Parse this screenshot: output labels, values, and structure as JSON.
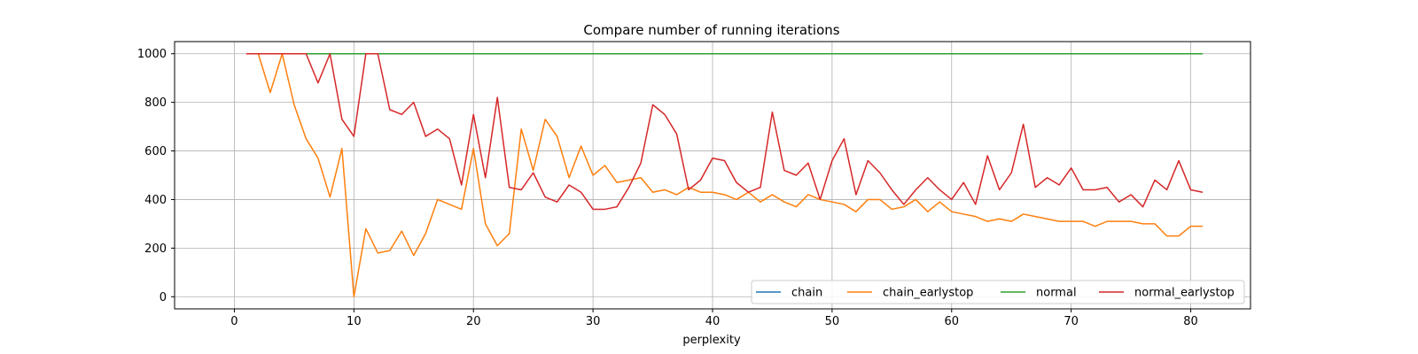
{
  "chart_data": {
    "type": "line",
    "title": "Compare number of running iterations",
    "xlabel": "perplexity",
    "ylabel": "",
    "xlim": [
      -5,
      85
    ],
    "ylim": [
      -50,
      1050
    ],
    "xticks": [
      0,
      10,
      20,
      30,
      40,
      50,
      60,
      70,
      80
    ],
    "yticks": [
      0,
      200,
      400,
      600,
      800,
      1000
    ],
    "grid": true,
    "legend_position": "lower-right",
    "x": [
      1,
      2,
      3,
      4,
      5,
      6,
      7,
      8,
      9,
      10,
      11,
      12,
      13,
      14,
      15,
      16,
      17,
      18,
      19,
      20,
      21,
      22,
      23,
      24,
      25,
      26,
      27,
      28,
      29,
      30,
      31,
      32,
      33,
      34,
      35,
      36,
      37,
      38,
      39,
      40,
      41,
      42,
      43,
      44,
      45,
      46,
      47,
      48,
      49,
      50,
      51,
      52,
      53,
      54,
      55,
      56,
      57,
      58,
      59,
      60,
      61,
      62,
      63,
      64,
      65,
      66,
      67,
      68,
      69,
      70,
      71,
      72,
      73,
      74,
      75,
      76,
      77,
      78,
      79,
      80,
      81
    ],
    "series": [
      {
        "name": "chain",
        "color": "#1f77b4",
        "values": [
          1000,
          1000,
          1000,
          1000,
          1000,
          1000,
          1000,
          1000,
          1000,
          1000,
          1000,
          1000,
          1000,
          1000,
          1000,
          1000,
          1000,
          1000,
          1000,
          1000,
          1000,
          1000,
          1000,
          1000,
          1000,
          1000,
          1000,
          1000,
          1000,
          1000,
          1000,
          1000,
          1000,
          1000,
          1000,
          1000,
          1000,
          1000,
          1000,
          1000,
          1000,
          1000,
          1000,
          1000,
          1000,
          1000,
          1000,
          1000,
          1000,
          1000,
          1000,
          1000,
          1000,
          1000,
          1000,
          1000,
          1000,
          1000,
          1000,
          1000,
          1000,
          1000,
          1000,
          1000,
          1000,
          1000,
          1000,
          1000,
          1000,
          1000,
          1000,
          1000,
          1000,
          1000,
          1000,
          1000,
          1000,
          1000,
          1000,
          1000,
          1000
        ]
      },
      {
        "name": "chain_earlystop",
        "color": "#ff7f0e",
        "values": [
          1000,
          1000,
          840,
          1000,
          790,
          650,
          570,
          410,
          610,
          0,
          280,
          180,
          190,
          270,
          170,
          260,
          400,
          380,
          360,
          610,
          300,
          210,
          260,
          690,
          520,
          730,
          660,
          490,
          620,
          500,
          540,
          470,
          480,
          490,
          430,
          440,
          420,
          450,
          430,
          430,
          420,
          400,
          430,
          390,
          420,
          390,
          370,
          420,
          400,
          390,
          380,
          350,
          400,
          400,
          360,
          370,
          400,
          350,
          390,
          350,
          340,
          330,
          310,
          320,
          310,
          340,
          330,
          320,
          310,
          310,
          310,
          290,
          310,
          310,
          310,
          300,
          300,
          250,
          250,
          290,
          290
        ]
      },
      {
        "name": "normal",
        "color": "#2ca02c",
        "values": [
          1000,
          1000,
          1000,
          1000,
          1000,
          1000,
          1000,
          1000,
          1000,
          1000,
          1000,
          1000,
          1000,
          1000,
          1000,
          1000,
          1000,
          1000,
          1000,
          1000,
          1000,
          1000,
          1000,
          1000,
          1000,
          1000,
          1000,
          1000,
          1000,
          1000,
          1000,
          1000,
          1000,
          1000,
          1000,
          1000,
          1000,
          1000,
          1000,
          1000,
          1000,
          1000,
          1000,
          1000,
          1000,
          1000,
          1000,
          1000,
          1000,
          1000,
          1000,
          1000,
          1000,
          1000,
          1000,
          1000,
          1000,
          1000,
          1000,
          1000,
          1000,
          1000,
          1000,
          1000,
          1000,
          1000,
          1000,
          1000,
          1000,
          1000,
          1000,
          1000,
          1000,
          1000,
          1000,
          1000,
          1000,
          1000,
          1000,
          1000,
          1000
        ]
      },
      {
        "name": "normal_earlystop",
        "color": "#d62728",
        "values": [
          1000,
          1000,
          1000,
          1000,
          1000,
          1000,
          880,
          1000,
          730,
          660,
          1000,
          1000,
          770,
          750,
          800,
          660,
          690,
          650,
          460,
          750,
          490,
          820,
          450,
          440,
          510,
          410,
          390,
          460,
          430,
          360,
          360,
          370,
          450,
          550,
          790,
          750,
          670,
          440,
          480,
          570,
          560,
          470,
          430,
          450,
          760,
          520,
          500,
          550,
          400,
          560,
          650,
          420,
          560,
          510,
          440,
          380,
          440,
          490,
          440,
          400,
          470,
          380,
          580,
          440,
          510,
          710,
          450,
          490,
          460,
          530,
          440,
          440,
          450,
          390,
          420,
          370,
          480,
          440,
          560,
          440,
          430
        ]
      }
    ]
  }
}
